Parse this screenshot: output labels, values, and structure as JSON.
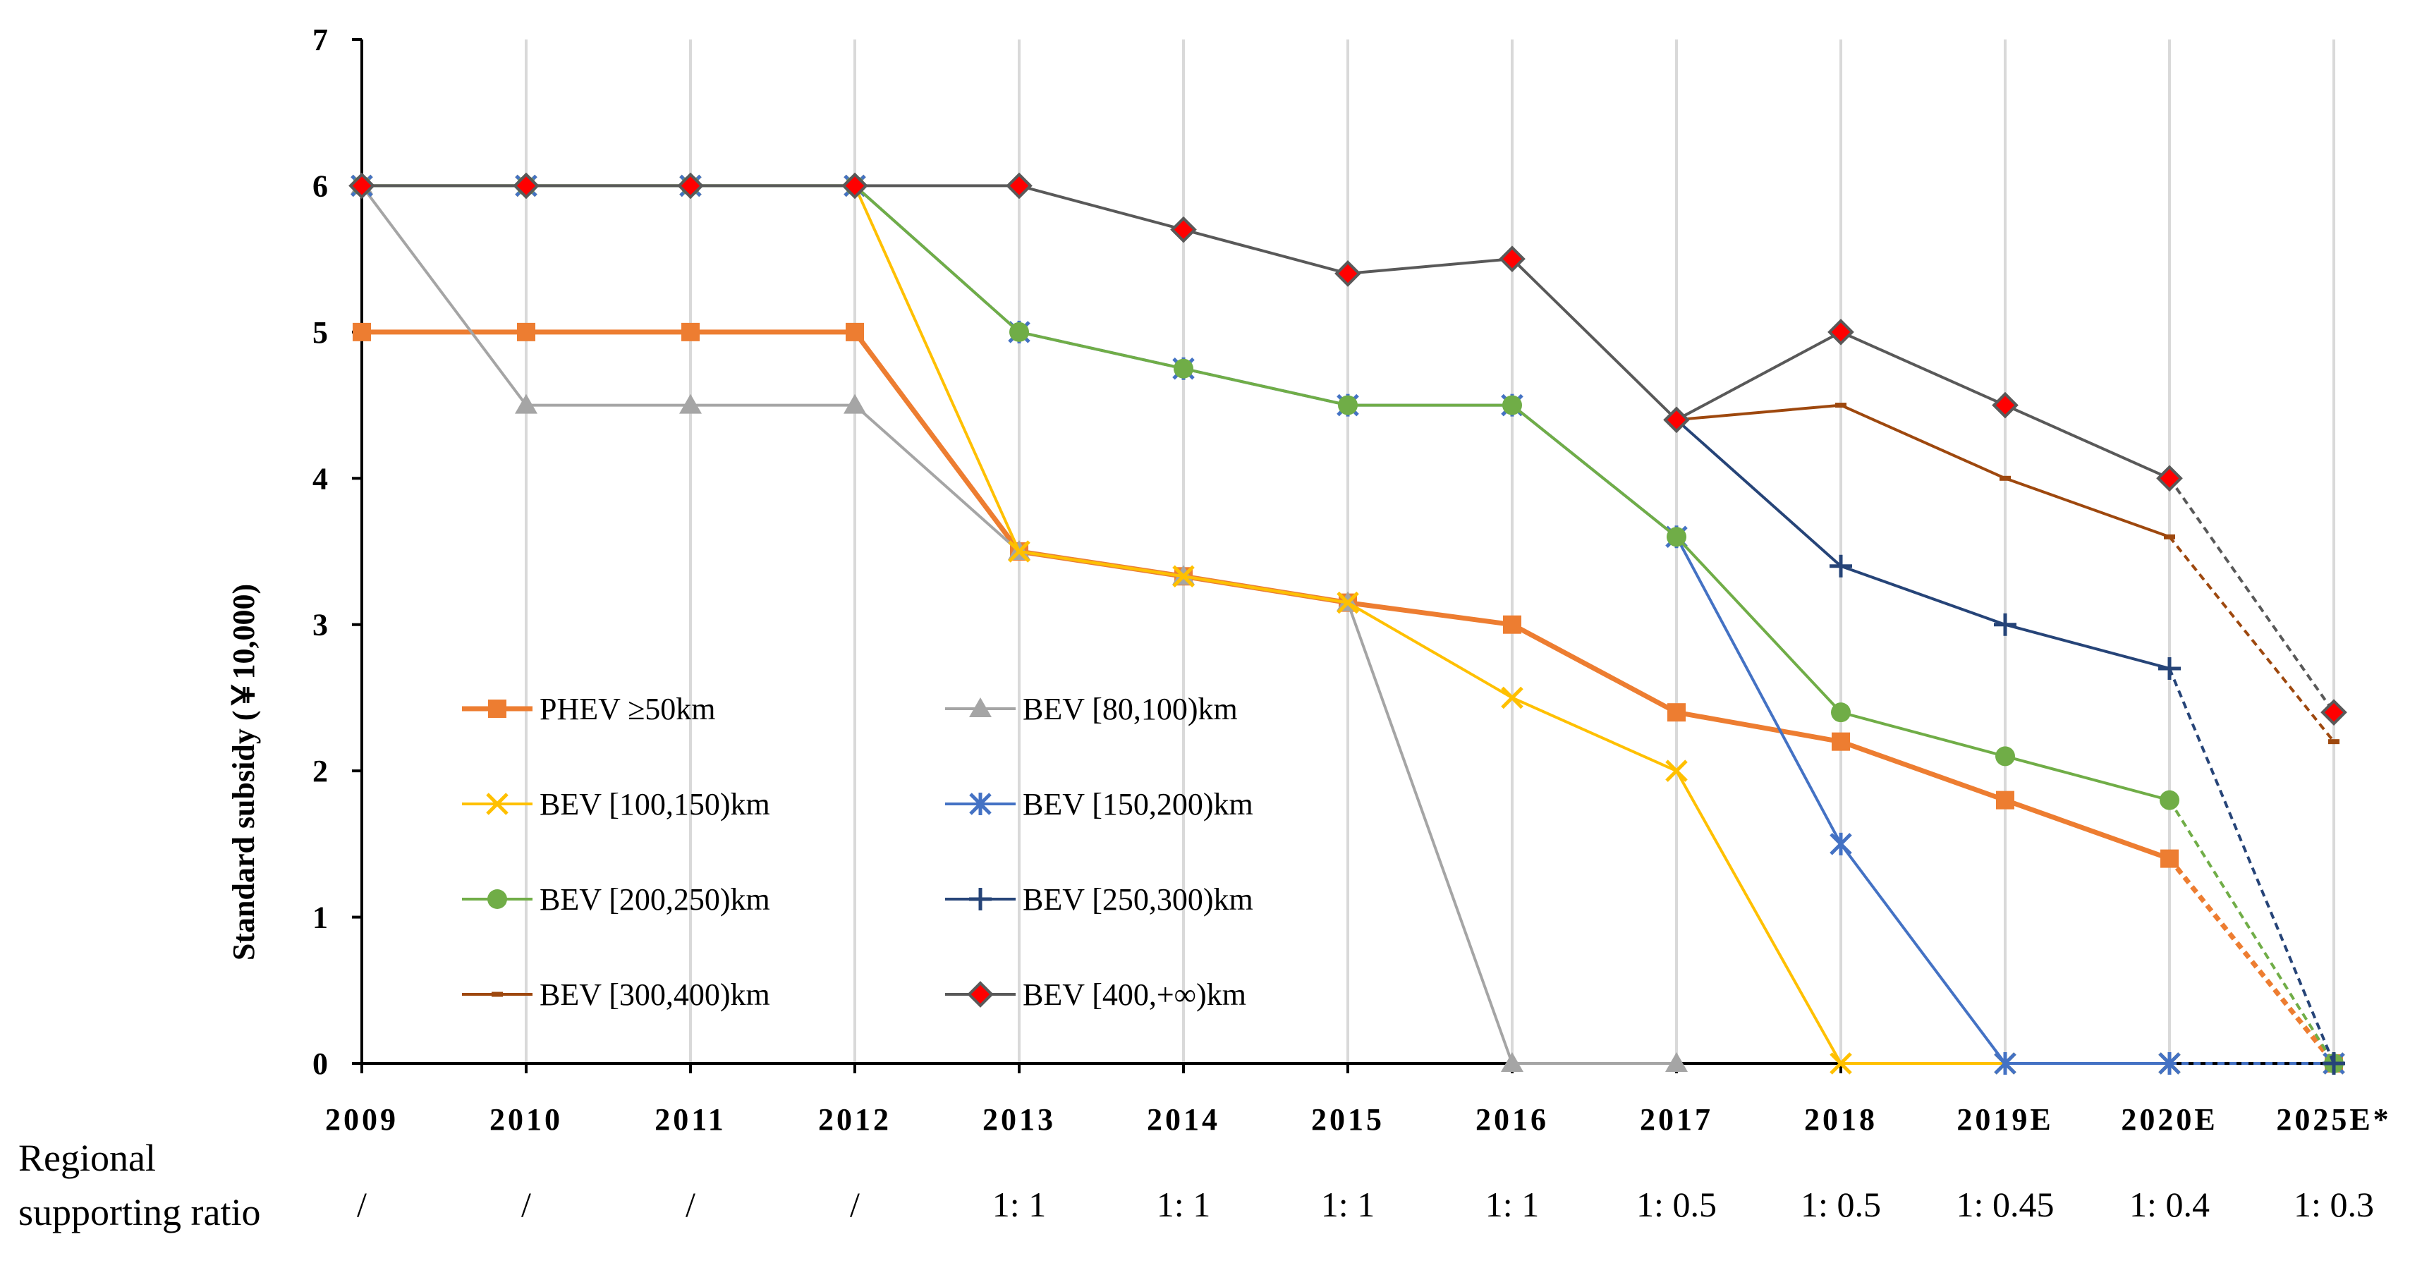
{
  "chart_data": {
    "type": "line",
    "title": "",
    "xlabel": "",
    "ylabel": "Standard  subsidy (￥10,000)",
    "ylim": [
      0,
      7
    ],
    "yticks": [
      "0",
      "1",
      "2",
      "3",
      "4",
      "5",
      "6",
      "7"
    ],
    "grid": "vertical",
    "legend_position": "center-left",
    "categories": [
      "2009",
      "2010",
      "2011",
      "2012",
      "2013",
      "2014",
      "2015",
      "2016",
      "2017",
      "2018",
      "2019E",
      "2020E",
      "2025E*"
    ],
    "ratio_label_line1": "Regional",
    "ratio_label_line2": "supporting ratio",
    "ratios": [
      "/",
      "/",
      "/",
      "/",
      "1: 1",
      "1: 1",
      "1: 1",
      "1: 1",
      "1: 0.5",
      "1: 0.5",
      "1: 0.45",
      "1: 0.4",
      "1: 0.3"
    ],
    "series": [
      {
        "name": "PHEV ≥50km",
        "color": "#ED7D31",
        "marker": "square",
        "width": 7,
        "values": [
          5,
          5,
          5,
          5,
          3.5,
          3.33,
          3.15,
          3,
          2.4,
          2.2,
          1.8,
          1.4,
          0
        ],
        "dashed_from_index": 11
      },
      {
        "name": "BEV [80,100)km",
        "color": "#A5A5A5",
        "marker": "triangle",
        "width": 4,
        "values": [
          6,
          4.5,
          4.5,
          4.5,
          3.5,
          3.33,
          3.15,
          0,
          0,
          null,
          null,
          null,
          null
        ],
        "dashed_from_index": null
      },
      {
        "name": "BEV [100,150)km",
        "color": "#FFC000",
        "marker": "x",
        "width": 4,
        "values": [
          6,
          6,
          6,
          6,
          3.5,
          3.33,
          3.15,
          2.5,
          2,
          0,
          0,
          0,
          0
        ],
        "dashed_from_index": 11
      },
      {
        "name": "BEV [150,200)km",
        "color": "#4472C4",
        "marker": "star",
        "width": 4,
        "values": [
          6,
          6,
          6,
          6,
          5,
          4.75,
          4.5,
          4.5,
          3.6,
          1.5,
          0,
          0,
          0
        ],
        "dashed_from_index": 11
      },
      {
        "name": "BEV [200,250)km",
        "color": "#70AD47",
        "marker": "circle",
        "width": 4,
        "values": [
          6,
          6,
          6,
          6,
          5,
          4.75,
          4.5,
          4.5,
          3.6,
          2.4,
          2.1,
          1.8,
          0
        ],
        "dashed_from_index": 11
      },
      {
        "name": "BEV [250,300)km",
        "color": "#264478",
        "marker": "plus",
        "width": 4,
        "values": [
          null,
          null,
          null,
          null,
          null,
          null,
          null,
          null,
          4.4,
          3.4,
          3,
          2.7,
          0
        ],
        "dashed_from_index": 11
      },
      {
        "name": "BEV [300,400)km",
        "color": "#9E480E",
        "marker": "dash",
        "width": 4,
        "values": [
          null,
          null,
          null,
          null,
          null,
          null,
          null,
          null,
          4.4,
          4.5,
          4,
          3.6,
          2.2
        ],
        "dashed_from_index": 11
      },
      {
        "name": "BEV [400,+∞)km",
        "color": "#595959",
        "marker": "diamond",
        "marker_fill": "#FF0000",
        "width": 4,
        "values": [
          6,
          6,
          6,
          6,
          6,
          5.7,
          5.4,
          5.5,
          4.4,
          5,
          4.5,
          4,
          2.4
        ],
        "dashed_from_index": 11
      }
    ]
  }
}
